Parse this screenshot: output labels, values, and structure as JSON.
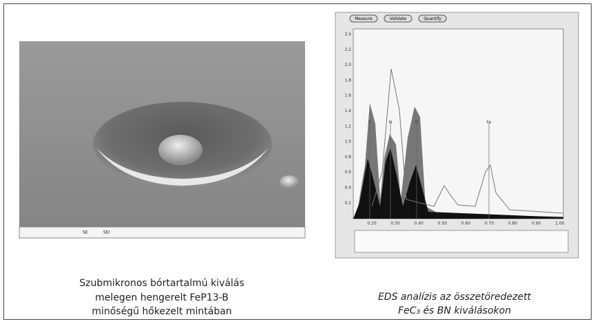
{
  "left_figure": {
    "caption": [
      "Szubmikronos bórtartalmú kiválás",
      "melegen hengerelt FeP13-B",
      "minőségű hőkezelt mintában"
    ],
    "info_bar": [
      "SE",
      "SEI"
    ]
  },
  "right_figure": {
    "buttons": [
      "Measure",
      "Validate",
      "Quantify"
    ],
    "yticks": [
      "2.4",
      "2.2",
      "2.0",
      "1.8",
      "1.6",
      "1.4",
      "1.2",
      "1.0",
      "0.8",
      "0.6",
      "0.4",
      "0.2"
    ],
    "xticks": [
      "0.20",
      "0.30",
      "0.40",
      "0.50",
      "0.60",
      "0.70",
      "0.80",
      "0.90",
      "1.00"
    ],
    "peak_labels": [
      "C",
      "N",
      "O",
      "Fe"
    ],
    "caption": [
      "EDS analízis az összetöredezett",
      "FeC₃ és BN kiválásokon"
    ]
  }
}
